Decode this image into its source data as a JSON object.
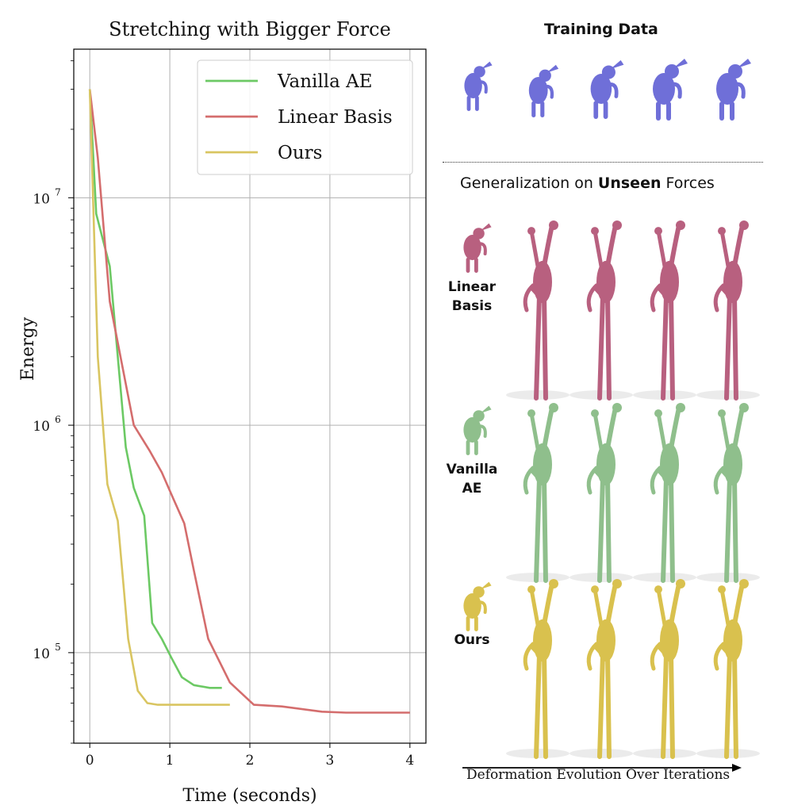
{
  "chart_data": {
    "type": "line",
    "title": "Stretching with Bigger Force",
    "xlabel": "Time (seconds)",
    "ylabel": "Energy",
    "yscale": "log",
    "xlim": [
      -0.2,
      4.2
    ],
    "ylim": [
      40000,
      45000000
    ],
    "xticks": [
      0,
      1,
      2,
      3,
      4
    ],
    "yticks": [
      {
        "value": 10000000,
        "base": "10",
        "exp": "7"
      },
      {
        "value": 1000000,
        "base": "10",
        "exp": "6"
      },
      {
        "value": 100000,
        "base": "10",
        "exp": "5"
      }
    ],
    "grid": true,
    "legend_position": "top-right",
    "series": [
      {
        "name": "Vanilla AE",
        "color": "#6cc964",
        "x": [
          0,
          0.08,
          0.25,
          0.45,
          0.55,
          0.68,
          0.78,
          0.9,
          1.02,
          1.15,
          1.3,
          1.5,
          1.65
        ],
        "y": [
          30000000,
          8500000,
          5000000,
          800000,
          530000,
          400000,
          135000,
          115000,
          95000,
          78000,
          72000,
          70000,
          70000
        ]
      },
      {
        "name": "Linear Basis",
        "color": "#d46d6d",
        "x": [
          0,
          0.1,
          0.25,
          0.55,
          0.75,
          0.9,
          1.05,
          1.18,
          1.3,
          1.48,
          1.75,
          2.05,
          2.4,
          2.9,
          3.2,
          4.0
        ],
        "y": [
          30000000,
          15000000,
          3500000,
          1000000,
          770000,
          620000,
          470000,
          370000,
          230000,
          115000,
          74000,
          59000,
          58000,
          55000,
          54500,
          54500
        ]
      },
      {
        "name": "Ours",
        "color": "#d9c561",
        "x": [
          0,
          0.1,
          0.22,
          0.35,
          0.42,
          0.48,
          0.6,
          0.72,
          0.85,
          1.2,
          1.75
        ],
        "y": [
          30000000,
          2000000,
          550000,
          380000,
          200000,
          115000,
          68000,
          60000,
          59000,
          59000,
          59000
        ]
      }
    ]
  },
  "panel": {
    "training_title": "Training Data",
    "generalization_prefix": "Generalization on ",
    "generalization_bold": "Unseen",
    "generalization_suffix": " Forces",
    "rows": [
      {
        "line1": "Linear",
        "line2": "Basis",
        "color": "#b8607f"
      },
      {
        "line1": "Vanilla",
        "line2": "AE",
        "color": "#8fbf8c"
      },
      {
        "line1": "Ours",
        "line2": "",
        "color": "#d9c14e"
      }
    ],
    "training_color": "#6f6fd8",
    "arrow_caption": "Deformation Evolution Over Iterations"
  }
}
